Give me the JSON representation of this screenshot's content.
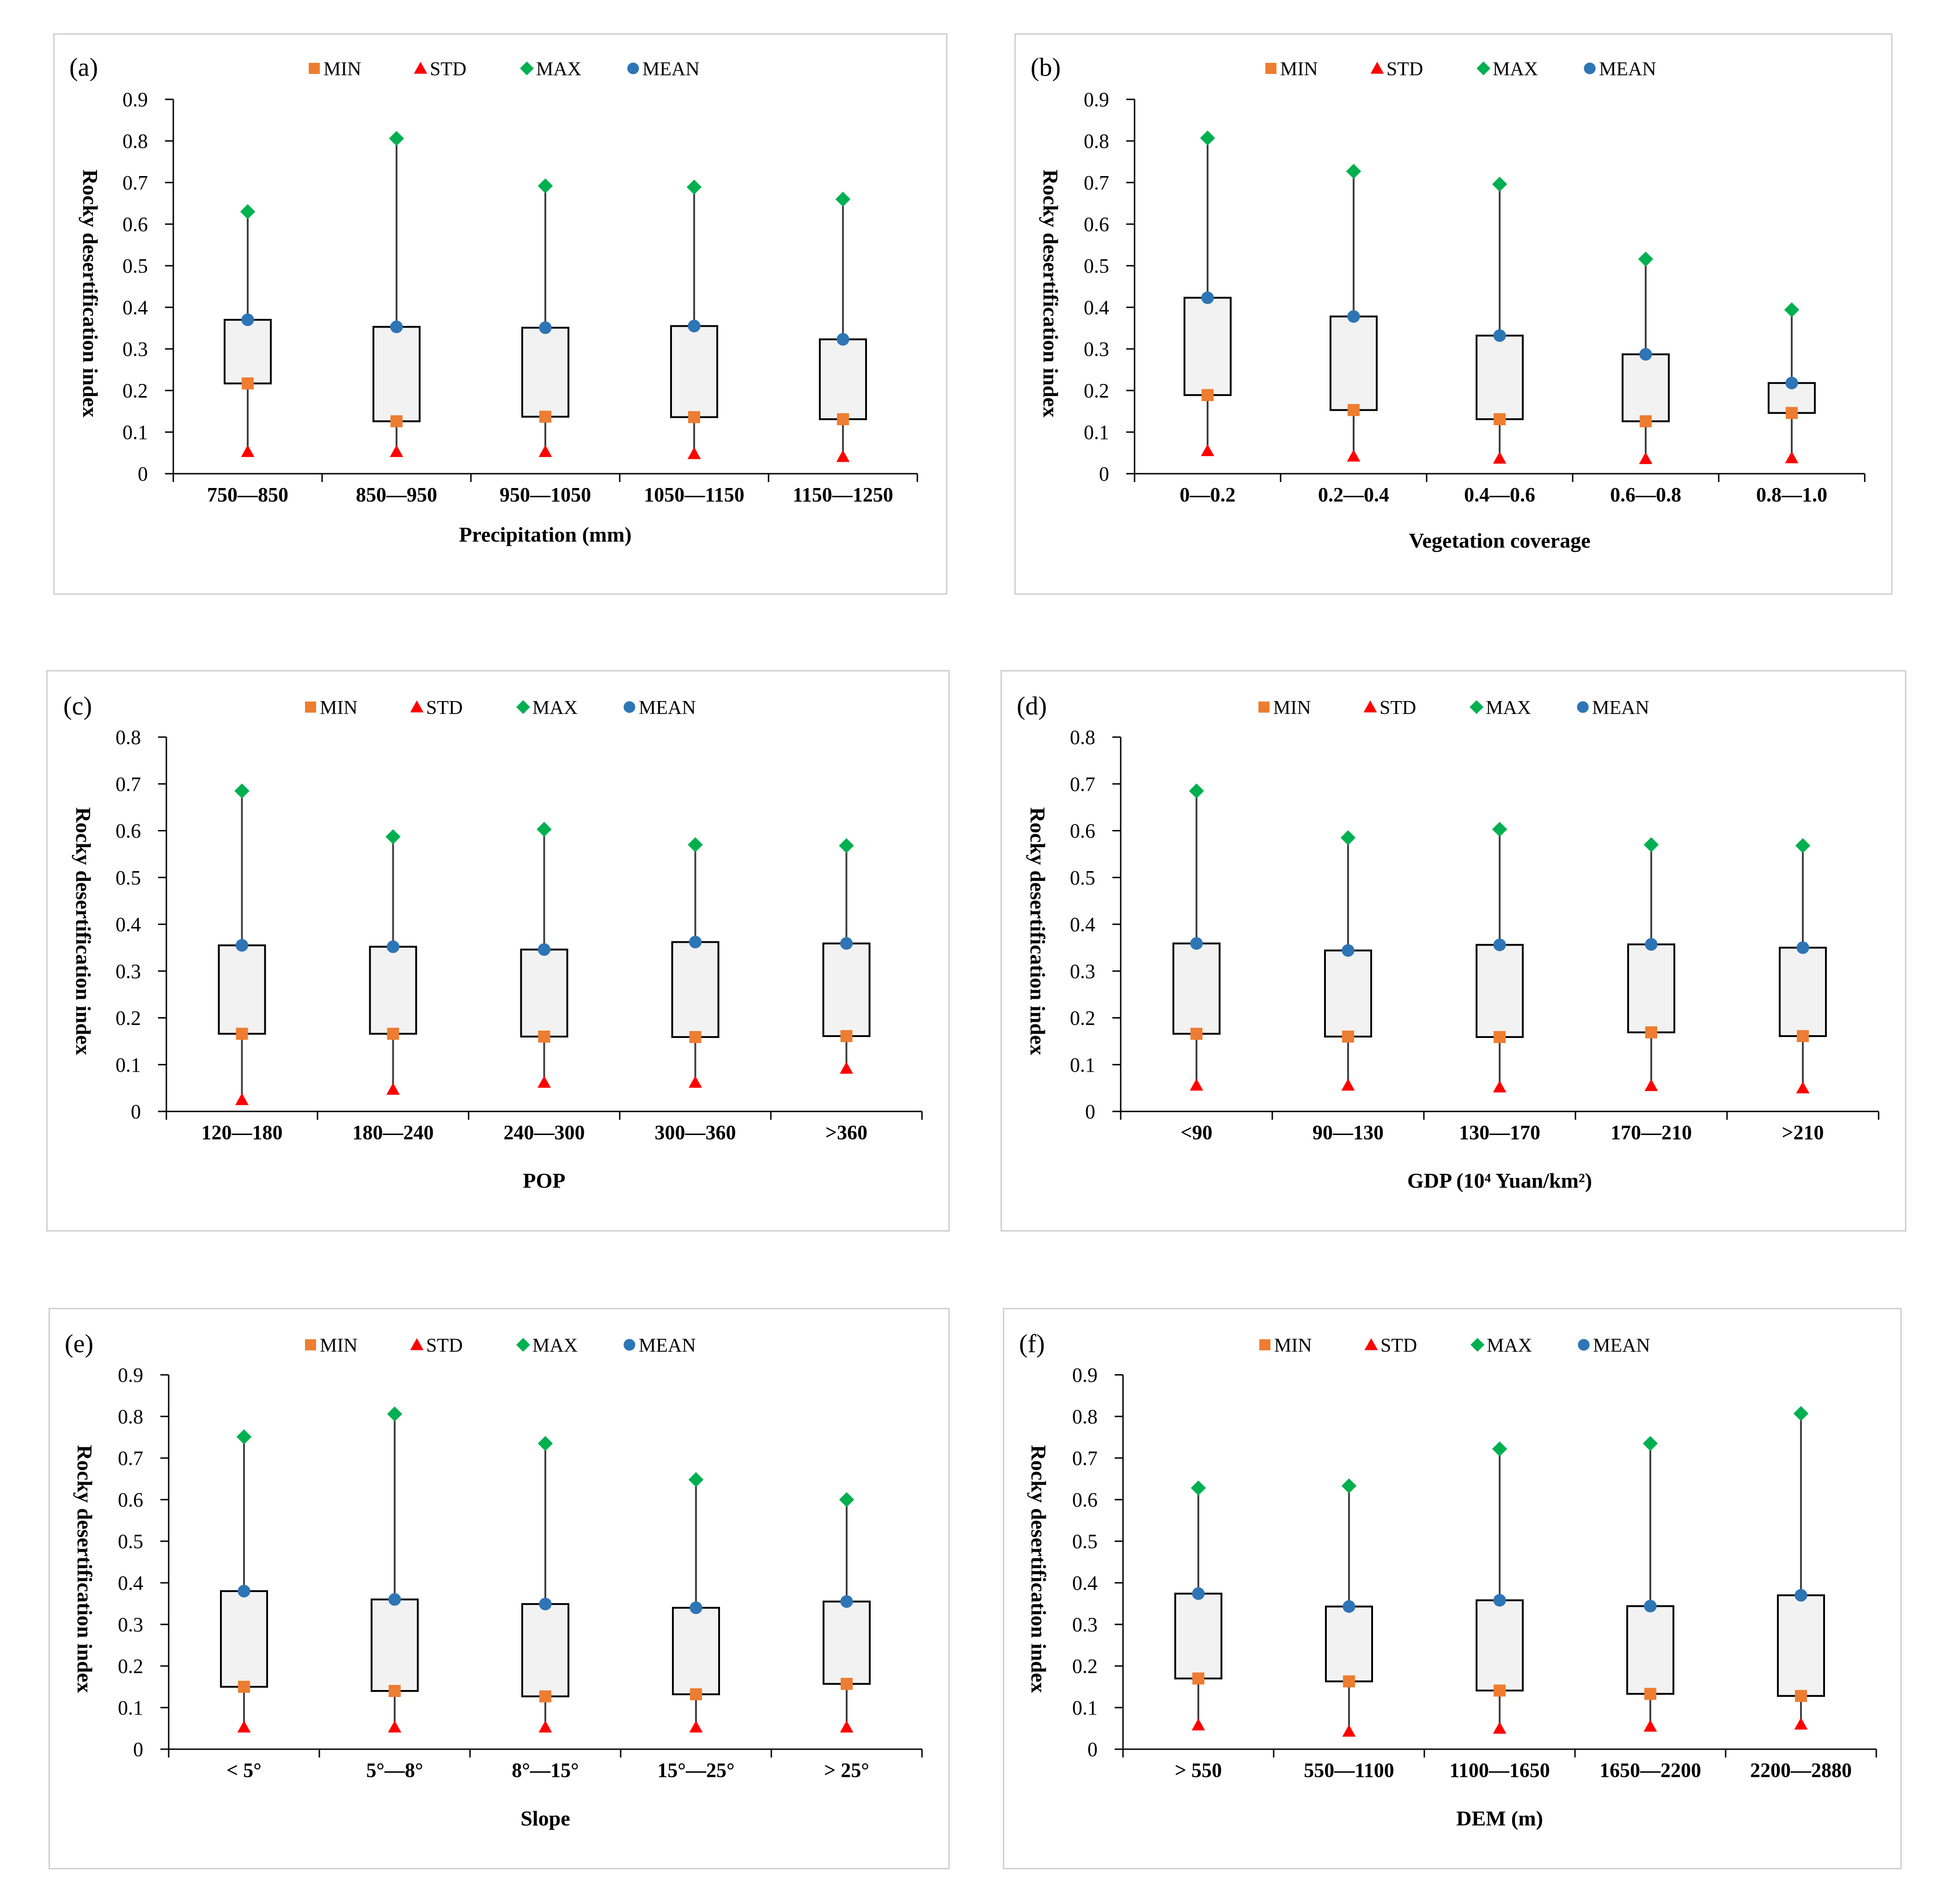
{
  "legend": {
    "min": "MIN",
    "std": "STD",
    "max": "MAX",
    "mean": "MEAN"
  },
  "colors": {
    "min": "#ED7D31",
    "std": "#FF0000",
    "max": "#00B050",
    "mean": "#2E75B6",
    "box": "#F2F2F2",
    "line": "#000000",
    "whisker": "#404040",
    "panel_border": "#d0d0d0"
  },
  "chart_data": [
    {
      "type": "boxplot",
      "label": "(a)",
      "title": "",
      "xlabel": "Precipitation (mm)",
      "ylabel": "Rocky desertification index",
      "ylim": [
        0,
        0.9
      ],
      "yticks": [
        "0",
        "0.1",
        "0.2",
        "0.3",
        "0.4",
        "0.5",
        "0.6",
        "0.7",
        "0.8",
        "0.9"
      ],
      "categories": [
        "750—850",
        "850—950",
        "950—1050",
        "1050—1150",
        "1150—1250"
      ],
      "series": [
        {
          "name": "MIN",
          "values": [
            0.217,
            0.126,
            0.137,
            0.136,
            0.131
          ]
        },
        {
          "name": "STD",
          "values": [
            0.053,
            0.053,
            0.053,
            0.048,
            0.041
          ]
        },
        {
          "name": "MAX",
          "values": [
            0.63,
            0.806,
            0.692,
            0.689,
            0.66
          ]
        },
        {
          "name": "MEAN",
          "values": [
            0.37,
            0.353,
            0.351,
            0.355,
            0.323
          ]
        }
      ]
    },
    {
      "type": "boxplot",
      "label": "(b)",
      "title": "",
      "xlabel": "Vegetation coverage",
      "ylabel": "Rocky desertification index",
      "ylim": [
        0,
        0.9
      ],
      "yticks": [
        "0",
        "0.1",
        "0.2",
        "0.3",
        "0.4",
        "0.5",
        "0.6",
        "0.7",
        "0.8",
        "0.9"
      ],
      "categories": [
        "0—0.2",
        "0.2—0.4",
        "0.4—0.6",
        "0.6—0.8",
        "0.8—1.0"
      ],
      "series": [
        {
          "name": "MIN",
          "values": [
            0.189,
            0.153,
            0.131,
            0.126,
            0.146
          ]
        },
        {
          "name": "STD",
          "values": [
            0.055,
            0.042,
            0.037,
            0.036,
            0.038
          ]
        },
        {
          "name": "MAX",
          "values": [
            0.807,
            0.727,
            0.696,
            0.516,
            0.394
          ]
        },
        {
          "name": "MEAN",
          "values": [
            0.423,
            0.378,
            0.332,
            0.287,
            0.218
          ]
        }
      ]
    },
    {
      "type": "boxplot",
      "label": "(c)",
      "title": "",
      "xlabel": "POP",
      "ylabel": "Rocky desertification index",
      "ylim": [
        0,
        0.8
      ],
      "yticks": [
        "0",
        "0.1",
        "0.2",
        "0.3",
        "0.4",
        "0.5",
        "0.6",
        "0.7",
        "0.8"
      ],
      "categories": [
        "120—180",
        "180—240",
        "240—300",
        "300—360",
        ">360"
      ],
      "series": [
        {
          "name": "MIN",
          "values": [
            0.166,
            0.166,
            0.16,
            0.159,
            0.161
          ]
        },
        {
          "name": "STD",
          "values": [
            0.025,
            0.047,
            0.062,
            0.062,
            0.092
          ]
        },
        {
          "name": "MAX",
          "values": [
            0.685,
            0.587,
            0.603,
            0.57,
            0.568
          ]
        },
        {
          "name": "MEAN",
          "values": [
            0.355,
            0.352,
            0.346,
            0.362,
            0.359
          ]
        }
      ]
    },
    {
      "type": "boxplot",
      "label": "(d)",
      "title": "",
      "xlabel": "GDP (10⁴ Yuan/km²)",
      "ylabel": "Rocky desertification index",
      "ylim": [
        0,
        0.8
      ],
      "yticks": [
        "0",
        "0.1",
        "0.2",
        "0.3",
        "0.4",
        "0.5",
        "0.6",
        "0.7",
        "0.8"
      ],
      "categories": [
        "<90",
        "90—130",
        "130—170",
        "170—210",
        ">210"
      ],
      "series": [
        {
          "name": "MIN",
          "values": [
            0.166,
            0.16,
            0.159,
            0.169,
            0.161
          ]
        },
        {
          "name": "STD",
          "values": [
            0.056,
            0.056,
            0.052,
            0.055,
            0.05
          ]
        },
        {
          "name": "MAX",
          "values": [
            0.685,
            0.585,
            0.603,
            0.57,
            0.568
          ]
        },
        {
          "name": "MEAN",
          "values": [
            0.359,
            0.344,
            0.356,
            0.357,
            0.35
          ]
        }
      ]
    },
    {
      "type": "boxplot",
      "label": "(e)",
      "title": "",
      "xlabel": "Slope",
      "ylabel": "Rocky desertification index",
      "ylim": [
        0,
        0.9
      ],
      "yticks": [
        "0",
        "0.1",
        "0.2",
        "0.3",
        "0.4",
        "0.5",
        "0.6",
        "0.7",
        "0.8",
        "0.9"
      ],
      "categories": [
        "< 5°",
        "5°—8°",
        "8°—15°",
        "15°—25°",
        "> 25°"
      ],
      "series": [
        {
          "name": "MIN",
          "values": [
            0.15,
            0.14,
            0.127,
            0.132,
            0.157
          ]
        },
        {
          "name": "STD",
          "values": [
            0.053,
            0.053,
            0.053,
            0.053,
            0.053
          ]
        },
        {
          "name": "MAX",
          "values": [
            0.751,
            0.806,
            0.735,
            0.648,
            0.6
          ]
        },
        {
          "name": "MEAN",
          "values": [
            0.38,
            0.36,
            0.349,
            0.34,
            0.355
          ]
        }
      ]
    },
    {
      "type": "boxplot",
      "label": "(f)",
      "title": "",
      "xlabel": "DEM (m)",
      "ylabel": "Rocky desertification index",
      "ylim": [
        0,
        0.9
      ],
      "yticks": [
        "0",
        "0.1",
        "0.2",
        "0.3",
        "0.4",
        "0.5",
        "0.6",
        "0.7",
        "0.8",
        "0.9"
      ],
      "categories": [
        "> 550",
        "550—1100",
        "1100—1650",
        "1650—2200",
        "2200—2880"
      ],
      "series": [
        {
          "name": "MIN",
          "values": [
            0.17,
            0.163,
            0.141,
            0.133,
            0.128
          ]
        },
        {
          "name": "STD",
          "values": [
            0.058,
            0.043,
            0.05,
            0.055,
            0.06
          ]
        },
        {
          "name": "MAX",
          "values": [
            0.628,
            0.633,
            0.722,
            0.735,
            0.807
          ]
        },
        {
          "name": "MEAN",
          "values": [
            0.374,
            0.343,
            0.358,
            0.344,
            0.37
          ]
        }
      ]
    }
  ]
}
